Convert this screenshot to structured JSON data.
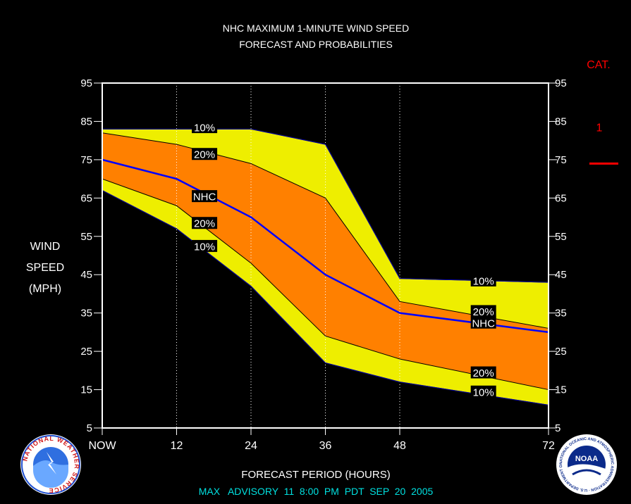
{
  "title": {
    "line1": "NHC MAXIMUM 1-MINUTE WIND SPEED",
    "line2": "FORECAST AND PROBABILITIES"
  },
  "y_axis_label": [
    "WIND",
    "SPEED",
    "(MPH)"
  ],
  "x_axis_label": "FORECAST PERIOD (HOURS)",
  "footer": "MAX   ADVISORY  11  8:00  PM  PDT  SEP  20  2005",
  "category": {
    "header": "CAT.",
    "label": "1"
  },
  "logos": {
    "left_text": "NATIONAL WEATHER SERVICE",
    "right_text": "NOAA",
    "right_ring": "NATIONAL OCEANIC AND ATMOSPHERIC ADMINISTRATION · U.S. DEPARTMENT OF COMMERCE"
  },
  "colors": {
    "background": "#000000",
    "plot_border": "#ffffff",
    "band_10": "#eeee00",
    "band_20": "#ff8000",
    "nhc_line": "#0000ff",
    "band_edge": "#000000",
    "title_text": "#ffffff",
    "footer_text": "#00e0e0",
    "category_text": "#ff0000",
    "label_box": "#000000"
  },
  "chart_data": {
    "type": "area",
    "title": "NHC MAXIMUM 1-MINUTE WIND SPEED FORECAST AND PROBABILITIES",
    "xlabel": "FORECAST PERIOD (HOURS)",
    "ylabel": "WIND SPEED (MPH)",
    "x_ticks": [
      {
        "value": 0,
        "label": "NOW"
      },
      {
        "value": 12,
        "label": "12"
      },
      {
        "value": 24,
        "label": "24"
      },
      {
        "value": 36,
        "label": "36"
      },
      {
        "value": 48,
        "label": "48"
      },
      {
        "value": 72,
        "label": "72"
      }
    ],
    "y_ticks": [
      5,
      15,
      25,
      35,
      45,
      55,
      65,
      75,
      85,
      95
    ],
    "xlim": [
      0,
      72
    ],
    "ylim": [
      5,
      95
    ],
    "vertical_gridlines_at": [
      12,
      24,
      36,
      48
    ],
    "x": [
      0,
      12,
      24,
      36,
      48,
      72
    ],
    "series": [
      {
        "name": "10%",
        "role": "upper",
        "values": [
          83,
          83,
          83,
          79,
          44,
          43
        ]
      },
      {
        "name": "20%",
        "role": "upper",
        "values": [
          82,
          79,
          74,
          65,
          38,
          31
        ]
      },
      {
        "name": "NHC",
        "role": "forecast",
        "values": [
          75,
          70,
          60,
          45,
          35,
          30
        ]
      },
      {
        "name": "20%",
        "role": "lower",
        "values": [
          70,
          63,
          48,
          29,
          23,
          15
        ]
      },
      {
        "name": "10%",
        "role": "lower",
        "values": [
          67,
          57,
          42,
          22,
          17,
          11
        ]
      }
    ],
    "labels": [
      {
        "text": "10%",
        "x": 16.5,
        "y": 83.5
      },
      {
        "text": "20%",
        "x": 16.5,
        "y": 76.5
      },
      {
        "text": "NHC",
        "x": 16.5,
        "y": 65.5
      },
      {
        "text": "20%",
        "x": 16.5,
        "y": 58.5
      },
      {
        "text": "10%",
        "x": 16.5,
        "y": 52.5
      },
      {
        "text": "10%",
        "x": 61.5,
        "y": 43.5
      },
      {
        "text": "20%",
        "x": 61.5,
        "y": 35.5
      },
      {
        "text": "NHC",
        "x": 61.5,
        "y": 32.5
      },
      {
        "text": "20%",
        "x": 61.5,
        "y": 19.5
      },
      {
        "text": "10%",
        "x": 61.5,
        "y": 14.5
      }
    ],
    "category_marker": {
      "label": "1",
      "threshold": 74
    }
  }
}
